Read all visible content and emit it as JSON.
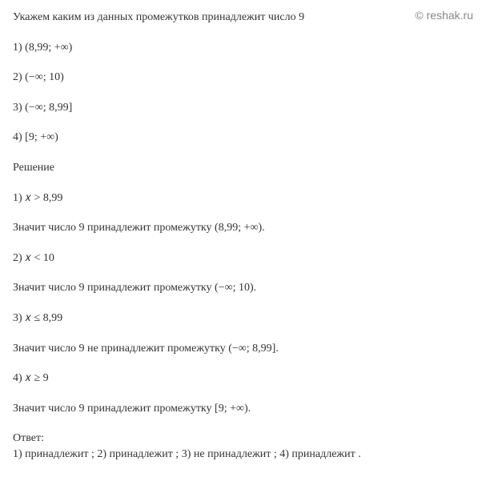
{
  "watermark": "© reshak.ru",
  "header": "Укажем каким из данных промежутков принадлежит число 9",
  "options": {
    "opt1": "1) (8,99; +∞)",
    "opt2": "2) (−∞; 10)",
    "opt3": "3)  (−∞; 8,99]",
    "opt4": "4)  [9; +∞)"
  },
  "solution_label": "Решение",
  "solutions": {
    "sol1_cond": "1) 𝑥 > 8,99",
    "sol1_text": "Значит число 9 принадлежит промежутку (8,99; +∞).",
    "sol2_cond": "2) 𝑥 < 10",
    "sol2_text": "Значит число 9 принадлежит промежутку (−∞; 10).",
    "sol3_cond": "3)  𝑥 ≤ 8,99",
    "sol3_text": "Значит число 9 не принадлежит промежутку (−∞; 8,99].",
    "sol4_cond": "4) 𝑥 ≥ 9",
    "sol4_text": "Значит число 9 принадлежит промежутку [9; +∞)."
  },
  "answer_label": "Ответ:",
  "answer_text": "1)  принадлежит ; 2) принадлежит ; 3) не принадлежит ; 4) принадлежит .",
  "colors": {
    "background": "#ffffff",
    "text": "#333333",
    "watermark": "#888888"
  },
  "typography": {
    "font_family": "Times New Roman",
    "font_size": 14
  }
}
